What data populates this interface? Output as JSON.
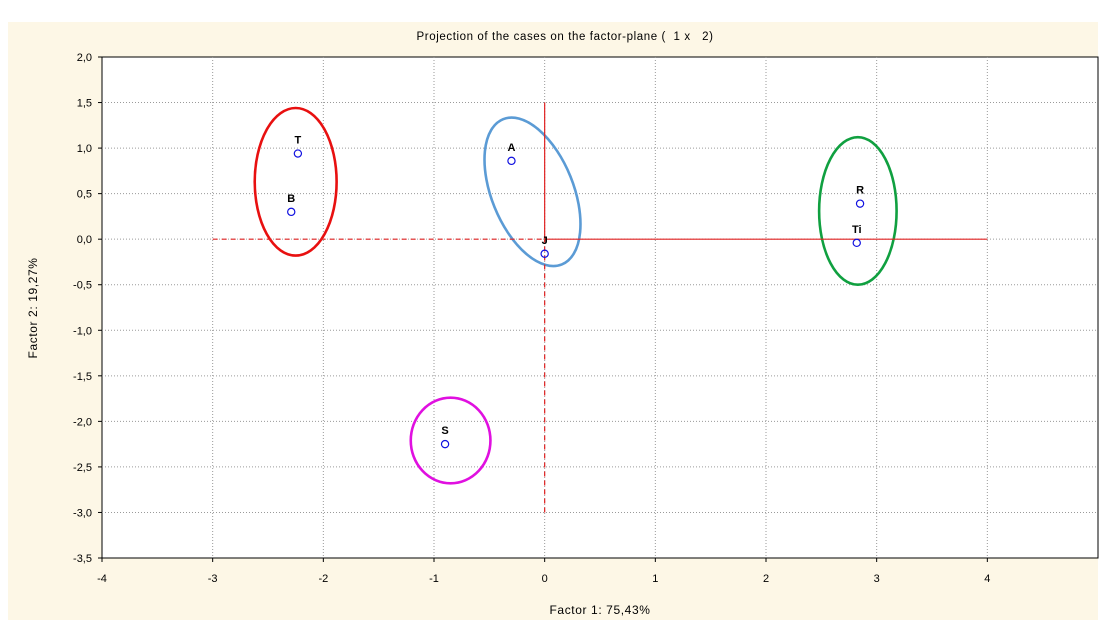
{
  "chart_data": {
    "type": "scatter",
    "title": "Projection of the cases on the factor-plane (  1 x   2)",
    "xlabel": "Factor 1: 75,43%",
    "ylabel": "Factor 2: 19,27%",
    "xlim": [
      -4,
      5
    ],
    "ylim": [
      -3.5,
      2.0
    ],
    "grid": true,
    "xticks": [
      {
        "v": -4,
        "label": "-4"
      },
      {
        "v": -3,
        "label": "-3"
      },
      {
        "v": -2,
        "label": "-2"
      },
      {
        "v": -1,
        "label": "-1"
      },
      {
        "v": 0,
        "label": "0"
      },
      {
        "v": 1,
        "label": "1"
      },
      {
        "v": 2,
        "label": "2"
      },
      {
        "v": 3,
        "label": "3"
      },
      {
        "v": 4,
        "label": "4"
      }
    ],
    "yticks": [
      {
        "v": 2.0,
        "label": "2,0"
      },
      {
        "v": 1.5,
        "label": "1,5"
      },
      {
        "v": 1.0,
        "label": "1,0"
      },
      {
        "v": 0.5,
        "label": "0,5"
      },
      {
        "v": 0.0,
        "label": "0,0"
      },
      {
        "v": -0.5,
        "label": "-0,5"
      },
      {
        "v": -1.0,
        "label": "-1,0"
      },
      {
        "v": -1.5,
        "label": "-1,5"
      },
      {
        "v": -2.0,
        "label": "-2,0"
      },
      {
        "v": -2.5,
        "label": "-2,5"
      },
      {
        "v": -3.0,
        "label": "-3,0"
      },
      {
        "v": -3.5,
        "label": "-3,5"
      }
    ],
    "points": [
      {
        "label": "T",
        "x": -2.23,
        "y": 0.94
      },
      {
        "label": "B",
        "x": -2.29,
        "y": 0.3
      },
      {
        "label": "A",
        "x": -0.3,
        "y": 0.86
      },
      {
        "label": "J",
        "x": 0.0,
        "y": -0.16
      },
      {
        "label": "R",
        "x": 2.85,
        "y": 0.39
      },
      {
        "label": "Ti",
        "x": 2.82,
        "y": -0.04
      },
      {
        "label": "S",
        "x": -0.9,
        "y": -2.25
      }
    ],
    "axis_lines": {
      "color": "#e02020",
      "horizontal": [
        {
          "from": -3,
          "to": 0,
          "y": 0,
          "dashed": true
        },
        {
          "from": 0,
          "to": 4,
          "y": 0,
          "dashed": false
        }
      ],
      "vertical": [
        {
          "from": 0,
          "to": 1.5,
          "x": 0,
          "dashed": false
        },
        {
          "from": -3,
          "to": 0,
          "x": 0,
          "dashed": true
        }
      ]
    },
    "ellipses": [
      {
        "color": "#e81010",
        "cx": -2.25,
        "cy": 0.63,
        "rx": 0.37,
        "ry": 0.81,
        "rotate": 0
      },
      {
        "color": "#5b9bd5",
        "cx": -0.11,
        "cy": 0.52,
        "rx": 0.37,
        "ry": 0.86,
        "rotate": -22
      },
      {
        "color": "#10a040",
        "cx": 2.83,
        "cy": 0.31,
        "rx": 0.35,
        "ry": 0.81,
        "rotate": 0
      },
      {
        "color": "#e010e0",
        "cx": -0.85,
        "cy": -2.21,
        "rx": 0.36,
        "ry": 0.47,
        "rotate": 0
      }
    ],
    "colors": {
      "points": "#1010e0",
      "grid": "#9a9a9a",
      "background": "#fdf7e6",
      "plot": "#ffffff"
    }
  }
}
